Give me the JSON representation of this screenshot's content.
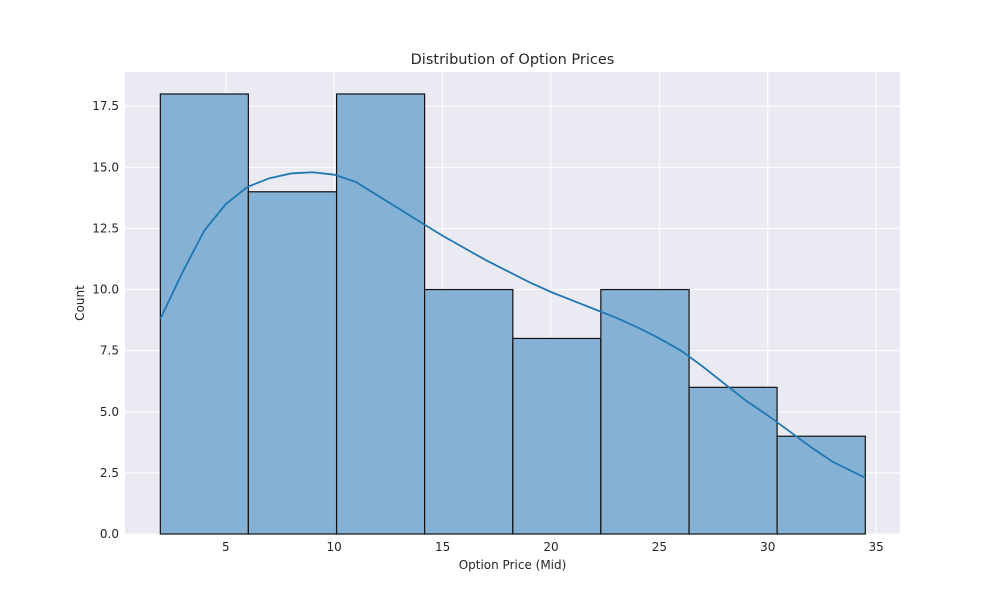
{
  "chart_data": {
    "type": "bar",
    "title": "Distribution of Option Prices",
    "xlabel": "Option Price (Mid)",
    "ylabel": "Count",
    "xlim": [
      0.35,
      36.1
    ],
    "ylim": [
      0,
      18.9
    ],
    "xticks": [
      5,
      10,
      15,
      20,
      25,
      30,
      35
    ],
    "xtick_labels": [
      "5",
      "10",
      "15",
      "20",
      "25",
      "30",
      "35"
    ],
    "yticks": [
      0,
      2.5,
      5,
      7.5,
      10,
      12.5,
      15,
      17.5
    ],
    "ytick_labels": [
      "0.0",
      "2.5",
      "5.0",
      "7.5",
      "10.0",
      "12.5",
      "15.0",
      "17.5"
    ],
    "grid": true,
    "bins": [
      {
        "x0": 1.98,
        "x1": 6.04,
        "count": 18
      },
      {
        "x0": 6.04,
        "x1": 10.11,
        "count": 14
      },
      {
        "x0": 10.11,
        "x1": 14.17,
        "count": 18
      },
      {
        "x0": 14.17,
        "x1": 18.24,
        "count": 10
      },
      {
        "x0": 18.24,
        "x1": 22.3,
        "count": 8
      },
      {
        "x0": 22.3,
        "x1": 26.37,
        "count": 10
      },
      {
        "x0": 26.37,
        "x1": 30.43,
        "count": 6
      },
      {
        "x0": 30.43,
        "x1": 34.5,
        "count": 4
      }
    ],
    "kde": {
      "x": [
        1.98,
        3,
        4,
        5,
        6,
        7,
        8,
        9,
        10,
        11,
        12,
        13,
        14,
        15,
        16,
        17,
        18,
        19,
        20,
        21,
        22,
        23,
        24,
        25,
        26,
        27,
        28,
        29,
        30,
        31,
        32,
        33,
        34.5
      ],
      "y": [
        8.8,
        10.7,
        12.4,
        13.5,
        14.2,
        14.55,
        14.75,
        14.8,
        14.7,
        14.4,
        13.85,
        13.3,
        12.75,
        12.2,
        11.7,
        11.2,
        10.75,
        10.3,
        9.9,
        9.55,
        9.2,
        8.85,
        8.45,
        8.0,
        7.5,
        6.85,
        6.15,
        5.45,
        4.85,
        4.2,
        3.55,
        2.95,
        2.3
      ]
    },
    "colors": {
      "bar_fill": "#85b1d4",
      "bar_edge": "#111111",
      "kde_line": "#1f77b4",
      "plot_bg": "#eaeaf2",
      "grid": "#ffffff"
    }
  }
}
